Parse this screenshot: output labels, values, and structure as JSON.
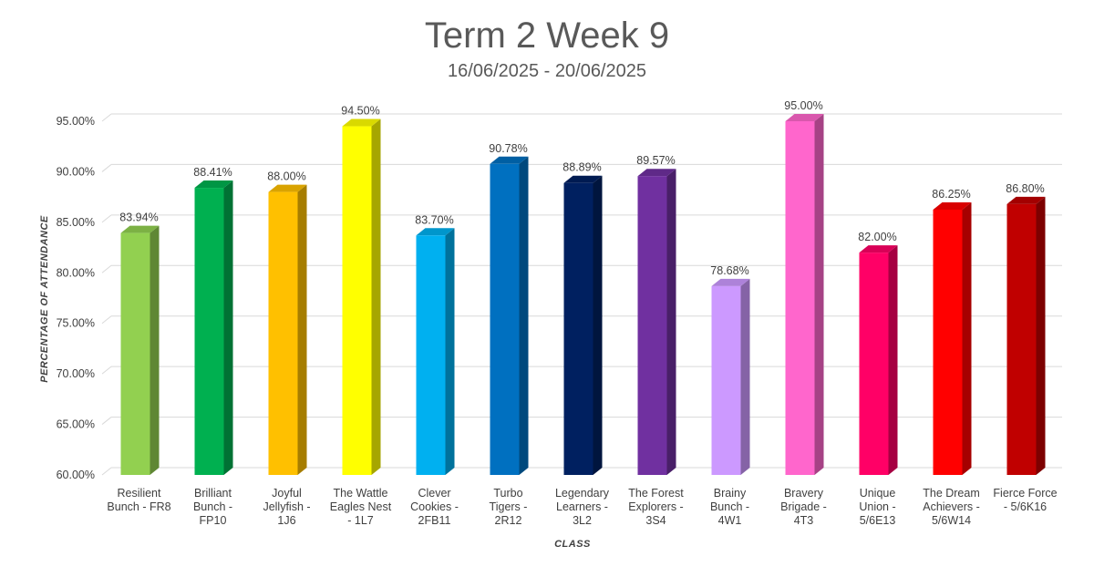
{
  "chart_data": {
    "type": "bar",
    "title": "Term 2 Week 9",
    "subtitle": "16/06/2025 - 20/06/2025",
    "xlabel": "CLASS",
    "ylabel": "PERCENTAGE OF ATTENDANCE",
    "ylim": [
      60,
      95
    ],
    "yticks": [
      60,
      65,
      70,
      75,
      80,
      85,
      90,
      95
    ],
    "ytick_labels": [
      "60.00%",
      "65.00%",
      "70.00%",
      "75.00%",
      "80.00%",
      "85.00%",
      "90.00%",
      "95.00%"
    ],
    "grid": true,
    "categories": [
      [
        "Resilient",
        "Bunch - FR8"
      ],
      [
        "Brilliant",
        "Bunch -",
        "FP10"
      ],
      [
        "Joyful",
        "Jellyfish -",
        "1J6"
      ],
      [
        "The Wattle",
        "Eagles Nest",
        "- 1L7"
      ],
      [
        "Clever",
        "Cookies -",
        "2FB11"
      ],
      [
        "Turbo",
        "Tigers -",
        "2R12"
      ],
      [
        "Legendary",
        "Learners -",
        "3L2"
      ],
      [
        "The Forest",
        "Explorers -",
        "3S4"
      ],
      [
        "Brainy",
        "Bunch -",
        "4W1"
      ],
      [
        "Bravery",
        "Brigade -",
        "4T3"
      ],
      [
        "Unique",
        "Union -",
        "5/6E13"
      ],
      [
        "The Dream",
        "Achievers -",
        "5/6W14"
      ],
      [
        "Fierce Force",
        "- 5/6K16"
      ]
    ],
    "values": [
      83.94,
      88.41,
      88.0,
      94.5,
      83.7,
      90.78,
      88.89,
      89.57,
      78.68,
      95.0,
      82.0,
      86.25,
      86.8
    ],
    "data_labels": [
      "83.94%",
      "88.41%",
      "88.00%",
      "94.50%",
      "83.70%",
      "90.78%",
      "88.89%",
      "89.57%",
      "78.68%",
      "95.00%",
      "82.00%",
      "86.25%",
      "86.80%"
    ],
    "colors": [
      "#92d050",
      "#00b050",
      "#ffc000",
      "#ffff00",
      "#00b0f0",
      "#0070c0",
      "#002060",
      "#7030a0",
      "#cc99ff",
      "#ff66cc",
      "#ff0066",
      "#ff0000",
      "#c00000"
    ]
  }
}
